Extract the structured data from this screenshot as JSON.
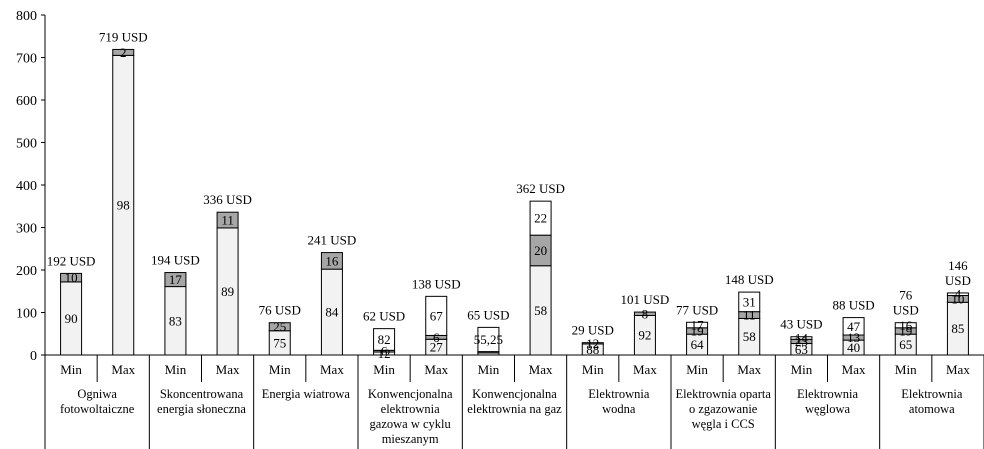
{
  "chart_data": {
    "type": "bar",
    "stacked": true,
    "ylim": [
      0,
      800
    ],
    "yticks": [
      0,
      100,
      200,
      300,
      400,
      500,
      600,
      700,
      800
    ],
    "subcategory_labels": [
      "Min",
      "Max"
    ],
    "segment_colors": [
      "#f2f2f2",
      "#a6a6a6",
      "#ffffff"
    ],
    "groups": [
      {
        "label_lines": [
          "Ogniwa",
          "fotowoltaiczne"
        ],
        "bars": [
          {
            "sub": "Min",
            "total_label": "192  USD",
            "segments": [
              {
                "value": 172,
                "label": "90"
              },
              {
                "value": 20,
                "label": "10"
              }
            ]
          },
          {
            "sub": "Max",
            "total_label": "719 USD",
            "segments": [
              {
                "value": 705,
                "label": "98"
              },
              {
                "value": 14,
                "label": "2"
              }
            ]
          }
        ]
      },
      {
        "label_lines": [
          "Skoncentrowana",
          "energia słoneczna"
        ],
        "bars": [
          {
            "sub": "Min",
            "total_label": "194 USD",
            "segments": [
              {
                "value": 161,
                "label": "83"
              },
              {
                "value": 33,
                "label": "17"
              }
            ]
          },
          {
            "sub": "Max",
            "total_label": "336 USD",
            "segments": [
              {
                "value": 299,
                "label": "89"
              },
              {
                "value": 37,
                "label": "11"
              }
            ]
          }
        ]
      },
      {
        "label_lines": [
          "Energia wiatrowa"
        ],
        "bars": [
          {
            "sub": "Min",
            "total_label": "76 USD",
            "segments": [
              {
                "value": 57,
                "label": "75"
              },
              {
                "value": 19,
                "label": "25"
              }
            ]
          },
          {
            "sub": "Max",
            "total_label": "241 USD",
            "segments": [
              {
                "value": 202,
                "label": "84"
              },
              {
                "value": 39,
                "label": "16"
              }
            ]
          }
        ]
      },
      {
        "label_lines": [
          "Konwencjonalna",
          "elektrownia",
          "gazowa w cyklu",
          "mieszanym"
        ],
        "bars": [
          {
            "sub": "Min",
            "total_label": "62 USD",
            "segments": [
              {
                "value": 7,
                "label": "12"
              },
              {
                "value": 4,
                "label": "6"
              },
              {
                "value": 51,
                "label": "82"
              }
            ]
          },
          {
            "sub": "Max",
            "total_label": "138  USD",
            "segments": [
              {
                "value": 37,
                "label": "27"
              },
              {
                "value": 9,
                "label": "6"
              },
              {
                "value": 92,
                "label": "67"
              }
            ]
          }
        ]
      },
      {
        "label_lines": [
          "Konwencjonalna",
          "elektrownia na gaz"
        ],
        "bars": [
          {
            "sub": "Min",
            "total_label": "65 USD",
            "segments": [
              {
                "value": 5,
                "label": ""
              },
              {
                "value": 3,
                "label": ""
              },
              {
                "value": 57,
                "label": "55,25"
              }
            ]
          },
          {
            "sub": "Max",
            "total_label": "362 USD",
            "segments": [
              {
                "value": 210,
                "label": "58"
              },
              {
                "value": 72,
                "label": "20"
              },
              {
                "value": 80,
                "label": "22"
              }
            ]
          }
        ]
      },
      {
        "label_lines": [
          "Elektrownia",
          "wodna"
        ],
        "bars": [
          {
            "sub": "Min",
            "total_label": "29 USD",
            "segments": [
              {
                "value": 26,
                "label": "88"
              },
              {
                "value": 3,
                "label": "12"
              }
            ]
          },
          {
            "sub": "Max",
            "total_label": "101 USD",
            "segments": [
              {
                "value": 93,
                "label": "92"
              },
              {
                "value": 8,
                "label": "8"
              }
            ]
          }
        ]
      },
      {
        "label_lines": [
          "Elektrownia oparta",
          "o zgazowanie",
          "węgla i CCS"
        ],
        "bars": [
          {
            "sub": "Min",
            "total_label": "77 USD",
            "segments": [
              {
                "value": 49,
                "label": "64"
              },
              {
                "value": 15,
                "label": "19"
              },
              {
                "value": 13,
                "label": "17"
              }
            ]
          },
          {
            "sub": "Max",
            "total_label": "148 USD",
            "segments": [
              {
                "value": 86,
                "label": "58"
              },
              {
                "value": 16,
                "label": "11"
              },
              {
                "value": 46,
                "label": "31"
              }
            ]
          }
        ]
      },
      {
        "label_lines": [
          "Elektrownia",
          "węglowa"
        ],
        "bars": [
          {
            "sub": "Min",
            "total_label": "43 USD",
            "segments": [
              {
                "value": 27,
                "label": "63"
              },
              {
                "value": 10,
                "label": "23"
              },
              {
                "value": 6,
                "label": "14"
              }
            ]
          },
          {
            "sub": "Max",
            "total_label": "88 USD",
            "segments": [
              {
                "value": 35,
                "label": "40"
              },
              {
                "value": 12,
                "label": "13"
              },
              {
                "value": 41,
                "label": "47"
              }
            ]
          }
        ]
      },
      {
        "label_lines": [
          "Elektrownia",
          "atomowa"
        ],
        "bars": [
          {
            "sub": "Min",
            "total_label": "76\nUSD",
            "segments": [
              {
                "value": 49,
                "label": "65"
              },
              {
                "value": 15,
                "label": "19"
              },
              {
                "value": 12,
                "label": "16"
              }
            ]
          },
          {
            "sub": "Max",
            "total_label": "146\nUSD",
            "segments": [
              {
                "value": 124,
                "label": "85"
              },
              {
                "value": 16,
                "label": "10"
              },
              {
                "value": 6,
                "label": "4"
              }
            ]
          }
        ]
      }
    ]
  }
}
